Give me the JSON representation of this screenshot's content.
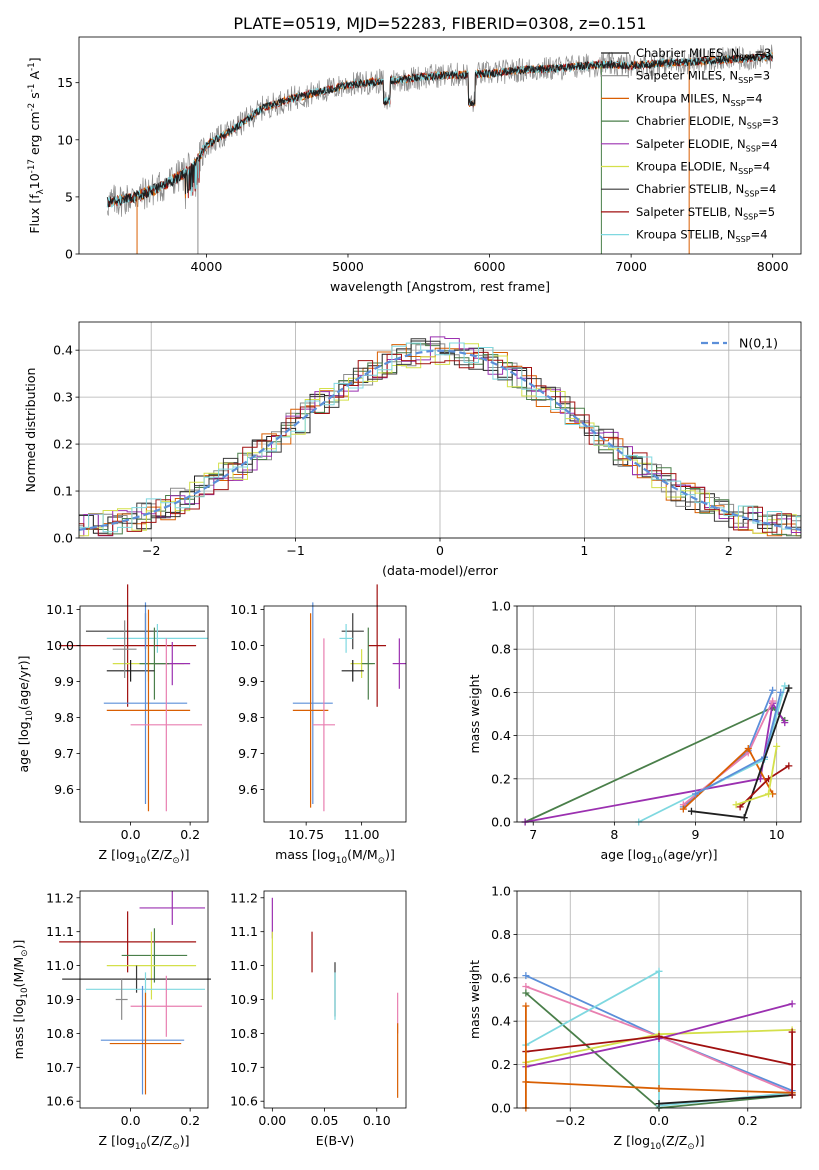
{
  "figure": {
    "title": "PLATE=0519, MJD=52283, FIBERID=0308, z=0.151"
  },
  "models": [
    {
      "name": "Chabrier MILES, N$_{SSP}$=3",
      "color": "#1f1f1f"
    },
    {
      "name": "Salpeter MILES, N$_{SSP}$=3",
      "color": "#8c8c8c"
    },
    {
      "name": "Kroupa MILES, N$_{SSP}$=4",
      "color": "#d95f02"
    },
    {
      "name": "Chabrier ELODIE, N$_{SSP}$=3",
      "color": "#4a7f4a"
    },
    {
      "name": "Salpeter ELODIE, N$_{SSP}$=4",
      "color": "#9b30b0"
    },
    {
      "name": "Kroupa ELODIE, N$_{SSP}$=4",
      "color": "#d4e04a"
    },
    {
      "name": "Chabrier STELIB, N$_{SSP}$=4",
      "color": "#3a3a3a"
    },
    {
      "name": "Salpeter STELIB, N$_{SSP}$=5",
      "color": "#a01010"
    },
    {
      "name": "Kroupa STELIB, N$_{SSP}$=4",
      "color": "#7fd8e0"
    }
  ],
  "chart_data": [
    {
      "id": "spectrum",
      "type": "line",
      "xlabel": "wavelength [Angstrom, rest frame]",
      "ylabel": "Flux [f$_\\lambda$10$^{-17}$ erg cm$^{-2}$ s$^{-1}$ A$^{-1}$]",
      "xlim": [
        3100,
        8200
      ],
      "ylim": [
        0,
        19
      ],
      "xticks": [
        4000,
        5000,
        6000,
        7000,
        8000
      ],
      "yticks": [
        0,
        5,
        10,
        15
      ],
      "spectrum_envelope": {
        "x": [
          3300,
          3500,
          3700,
          3900,
          4000,
          4200,
          4400,
          4600,
          4800,
          5000,
          5200,
          5400,
          5600,
          5800,
          6000,
          6200,
          6400,
          6600,
          6800,
          7000,
          7200,
          7400,
          7600,
          7800,
          8000
        ],
        "y": [
          4.5,
          5.0,
          6.0,
          7.5,
          9.5,
          11.0,
          12.8,
          13.6,
          14.2,
          14.8,
          15.1,
          15.3,
          15.6,
          15.7,
          15.8,
          16.1,
          16.2,
          16.4,
          16.6,
          16.5,
          16.7,
          16.8,
          17.0,
          17.1,
          17.3
        ]
      },
      "grid": false,
      "legend": "right"
    },
    {
      "id": "residuals",
      "type": "histogram",
      "xlabel": "(data-model)/error",
      "ylabel": "Normed distribution",
      "xlim": [
        -2.5,
        2.5
      ],
      "ylim": [
        0,
        0.46
      ],
      "xticks": [
        -2,
        -1,
        0,
        1,
        2
      ],
      "yticks": [
        0.0,
        0.1,
        0.2,
        0.3,
        0.4
      ],
      "reference": {
        "label": "$\\mathcal{N}(0,1)$",
        "mean": 0,
        "sigma": 1
      },
      "bin_width": 0.1,
      "grid": true,
      "legend": "top-right"
    },
    {
      "id": "age_vs_Z",
      "type": "errorbar",
      "xlabel": "Z [log$_{10}$(Z/Z$_\\odot$)]",
      "ylabel": "age  [log$_{10}$(age/yr)]",
      "xlim": [
        -0.17,
        0.26
      ],
      "ylim": [
        9.51,
        10.11
      ],
      "xticks": [
        0.0,
        0.2
      ],
      "yticks": [
        9.6,
        9.7,
        9.8,
        9.9,
        10.0,
        10.1
      ],
      "points": [
        {
          "model": 6,
          "x": 0.05,
          "xerr": 0.2,
          "y": 10.04,
          "yerr": 0.05
        },
        {
          "model": 8,
          "x": 0.09,
          "xerr": 0.17,
          "y": 10.02,
          "yerr": 0.04
        },
        {
          "model": 7,
          "x": -0.01,
          "xerr": 0.23,
          "y": 10.0,
          "yerr": 0.17
        },
        {
          "model": 5,
          "x": 0.06,
          "xerr": 0.12,
          "y": 9.95,
          "yerr": 0.05
        },
        {
          "model": 4,
          "x": 0.14,
          "xerr": 0.06,
          "y": 9.95,
          "yerr": 0.06
        },
        {
          "model": 3,
          "x": 0.08,
          "xerr": 0.05,
          "y": 9.95,
          "yerr": 0.1
        },
        {
          "model": 0,
          "x": 0.0,
          "xerr": 0.08,
          "y": 9.93,
          "yerr": 0.03
        },
        {
          "model": 1,
          "x": -0.02,
          "xerr": 0.04,
          "y": 9.99,
          "yerr": 0.08
        },
        {
          "model": 9,
          "x": 0.05,
          "xerr": 0.14,
          "y": 9.84,
          "yerr": 0.28
        },
        {
          "model": 2,
          "x": 0.06,
          "xerr": 0.14,
          "y": 9.82,
          "yerr": 0.28
        },
        {
          "model": 10,
          "x": 0.12,
          "xerr": 0.12,
          "y": 9.78,
          "yerr": 0.24
        }
      ]
    },
    {
      "id": "age_vs_mass",
      "type": "errorbar",
      "xlabel": "mass [log$_{10}$(M/M$_\\odot$)]",
      "ylabel": "",
      "xlim": [
        10.56,
        11.2
      ],
      "ylim": [
        9.51,
        10.11
      ],
      "xticks": [
        10.75,
        11.0
      ],
      "yticks": [
        9.6,
        9.7,
        9.8,
        9.9,
        10.0,
        10.1
      ],
      "points": [
        {
          "model": 6,
          "x": 10.96,
          "xerr": 0.05,
          "y": 10.04,
          "yerr": 0.05
        },
        {
          "model": 8,
          "x": 10.93,
          "xerr": 0.03,
          "y": 10.02,
          "yerr": 0.04
        },
        {
          "model": 7,
          "x": 11.07,
          "xerr": 0.04,
          "y": 10.0,
          "yerr": 0.17
        },
        {
          "model": 5,
          "x": 11.0,
          "xerr": 0.05,
          "y": 9.95,
          "yerr": 0.04
        },
        {
          "model": 4,
          "x": 11.17,
          "xerr": 0.03,
          "y": 9.95,
          "yerr": 0.07
        },
        {
          "model": 3,
          "x": 11.03,
          "xerr": 0.03,
          "y": 9.95,
          "yerr": 0.1
        },
        {
          "model": 0,
          "x": 10.96,
          "xerr": 0.05,
          "y": 9.93,
          "yerr": 0.03
        },
        {
          "model": 9,
          "x": 10.78,
          "xerr": 0.09,
          "y": 9.84,
          "yerr": 0.28
        },
        {
          "model": 2,
          "x": 10.77,
          "xerr": 0.08,
          "y": 9.82,
          "yerr": 0.27
        },
        {
          "model": 10,
          "x": 10.83,
          "xerr": 0.05,
          "y": 9.78,
          "yerr": 0.24
        }
      ]
    },
    {
      "id": "weights_vs_age",
      "type": "line",
      "xlabel": "age  [log$_{10}$(age/yr)]",
      "ylabel": "mass weight",
      "xlim": [
        6.8,
        10.3
      ],
      "ylim": [
        0,
        1
      ],
      "xticks": [
        7,
        8,
        9,
        10
      ],
      "yticks": [
        0.0,
        0.2,
        0.4,
        0.6,
        0.8,
        1.0
      ],
      "series": [
        {
          "model": 3,
          "x": [
            6.9,
            9.95,
            10.1
          ],
          "y": [
            0.0,
            0.53,
            0.47
          ]
        },
        {
          "model": 4,
          "x": [
            6.9,
            9.8,
            9.95,
            10.1
          ],
          "y": [
            0.0,
            0.2,
            0.55,
            0.46
          ]
        },
        {
          "model": 9,
          "x": [
            8.85,
            9.65,
            9.95
          ],
          "y": [
            0.07,
            0.33,
            0.61
          ]
        },
        {
          "model": 10,
          "x": [
            8.85,
            9.65,
            9.95
          ],
          "y": [
            0.08,
            0.32,
            0.56
          ]
        },
        {
          "model": 2,
          "x": [
            8.85,
            9.65,
            9.95
          ],
          "y": [
            0.06,
            0.34,
            0.13
          ]
        },
        {
          "model": 8,
          "x": [
            8.3,
            9.85,
            10.1
          ],
          "y": [
            0.0,
            0.29,
            0.63
          ]
        },
        {
          "model": 9,
          "x": [
            9.0,
            9.85,
            10.05
          ],
          "y": [
            0.13,
            0.3,
            0.6
          ]
        },
        {
          "model": 0,
          "x": [
            8.95,
            9.6,
            10.15
          ],
          "y": [
            0.05,
            0.02,
            0.62
          ]
        },
        {
          "model": 7,
          "x": [
            9.55,
            9.9,
            10.15
          ],
          "y": [
            0.07,
            0.2,
            0.26
          ]
        },
        {
          "model": 5,
          "x": [
            9.5,
            9.9,
            10.0
          ],
          "y": [
            0.08,
            0.13,
            0.35
          ]
        }
      ],
      "grid": true
    },
    {
      "id": "mass_vs_Z",
      "type": "errorbar",
      "xlabel": "Z [log$_{10}$(Z/Z$_\\odot$)]",
      "ylabel": "mass [log$_{10}$(M/M$_\\odot$)]",
      "xlim": [
        -0.17,
        0.26
      ],
      "ylim": [
        10.58,
        11.22
      ],
      "xticks": [
        0.0,
        0.2
      ],
      "yticks": [
        10.6,
        10.7,
        10.8,
        10.9,
        11.0,
        11.1,
        11.2
      ],
      "points": [
        {
          "model": 4,
          "x": 0.14,
          "xerr": 0.11,
          "y": 11.17,
          "yerr": 0.05
        },
        {
          "model": 7,
          "x": -0.01,
          "xerr": 0.23,
          "y": 11.07,
          "yerr": 0.09
        },
        {
          "model": 3,
          "x": 0.08,
          "xerr": 0.11,
          "y": 11.03,
          "yerr": 0.08
        },
        {
          "model": 5,
          "x": 0.07,
          "xerr": 0.15,
          "y": 11.0,
          "yerr": 0.1
        },
        {
          "model": 6,
          "x": 0.02,
          "xerr": 0.25,
          "y": 10.96,
          "yerr": 0.04
        },
        {
          "model": 8,
          "x": 0.05,
          "xerr": 0.2,
          "y": 10.93,
          "yerr": 0.05
        },
        {
          "model": 1,
          "x": -0.03,
          "xerr": 0.02,
          "y": 10.9,
          "yerr": 0.06
        },
        {
          "model": 10,
          "x": 0.12,
          "xerr": 0.12,
          "y": 10.88,
          "yerr": 0.09
        },
        {
          "model": 9,
          "x": 0.04,
          "xerr": 0.14,
          "y": 10.78,
          "yerr": 0.16
        },
        {
          "model": 2,
          "x": 0.05,
          "xerr": 0.12,
          "y": 10.77,
          "yerr": 0.15
        }
      ]
    },
    {
      "id": "mass_vs_ebv",
      "type": "errorbar",
      "xlabel": "E(B-V)",
      "ylabel": "",
      "xlim": [
        -0.008,
        0.128
      ],
      "ylim": [
        10.58,
        11.22
      ],
      "xticks": [
        0.0,
        0.05,
        0.1
      ],
      "yticks": [
        10.6,
        10.7,
        10.8,
        10.9,
        11.0,
        11.1,
        11.2
      ],
      "points": [
        {
          "model": 4,
          "x": 0.0,
          "xerr": 0.0,
          "y": 11.14,
          "yerr": 0.06
        },
        {
          "model": 5,
          "x": 0.0,
          "xerr": 0.0,
          "y": 11.0,
          "yerr": 0.1
        },
        {
          "model": 7,
          "x": 0.038,
          "xerr": 0.0,
          "y": 11.04,
          "yerr": 0.06
        },
        {
          "model": 6,
          "x": 0.06,
          "xerr": 0.0,
          "y": 10.93,
          "yerr": 0.08
        },
        {
          "model": 8,
          "x": 0.06,
          "xerr": 0.0,
          "y": 10.91,
          "yerr": 0.07
        },
        {
          "model": 10,
          "x": 0.12,
          "xerr": 0.0,
          "y": 10.86,
          "yerr": 0.06
        },
        {
          "model": 2,
          "x": 0.12,
          "xerr": 0.0,
          "y": 10.72,
          "yerr": 0.11
        }
      ]
    },
    {
      "id": "weights_vs_Z",
      "type": "line",
      "xlabel": "Z [log$_{10}$(Z/Z$_\\odot$)]",
      "ylabel": "mass weight",
      "xlim": [
        -0.32,
        0.32
      ],
      "ylim": [
        0,
        1
      ],
      "xticks": [
        -0.2,
        0.0,
        0.2
      ],
      "yticks": [
        0.0,
        0.2,
        0.4,
        0.6,
        0.8,
        1.0
      ],
      "series": [
        {
          "model": 9,
          "x": [
            -0.3,
            0.0,
            0.3
          ],
          "y": [
            0.61,
            0.33,
            0.08
          ]
        },
        {
          "model": 10,
          "x": [
            -0.3,
            0.0,
            0.3
          ],
          "y": [
            0.56,
            0.33,
            0.07
          ]
        },
        {
          "model": 3,
          "x": [
            -0.3,
            0.0,
            0.3
          ],
          "y": [
            0.53,
            0.0,
            0.06
          ]
        },
        {
          "model": 8,
          "x": [
            -0.3,
            0.0,
            0.0,
            0.3
          ],
          "y": [
            0.29,
            0.63,
            0.01,
            0.07
          ]
        },
        {
          "model": 5,
          "x": [
            -0.3,
            0.0,
            0.3
          ],
          "y": [
            0.21,
            0.34,
            0.36
          ]
        },
        {
          "model": 4,
          "x": [
            -0.3,
            0.0,
            0.3
          ],
          "y": [
            0.19,
            0.32,
            0.48
          ]
        },
        {
          "model": 7,
          "x": [
            -0.3,
            0.0,
            0.3
          ],
          "y": [
            0.26,
            0.33,
            0.2
          ]
        },
        {
          "model": 2,
          "x": [
            -0.3,
            0.0,
            0.3
          ],
          "y": [
            0.12,
            0.09,
            0.07
          ]
        },
        {
          "model": 0,
          "x": [
            0.0,
            0.3
          ],
          "y": [
            0.02,
            0.06
          ]
        },
        {
          "model": 2,
          "x": [
            -0.3,
            -0.3
          ],
          "y": [
            0.0,
            0.47
          ]
        },
        {
          "model": 7,
          "x": [
            0.3,
            0.3
          ],
          "y": [
            0.06,
            0.35
          ]
        }
      ],
      "grid": true
    }
  ]
}
